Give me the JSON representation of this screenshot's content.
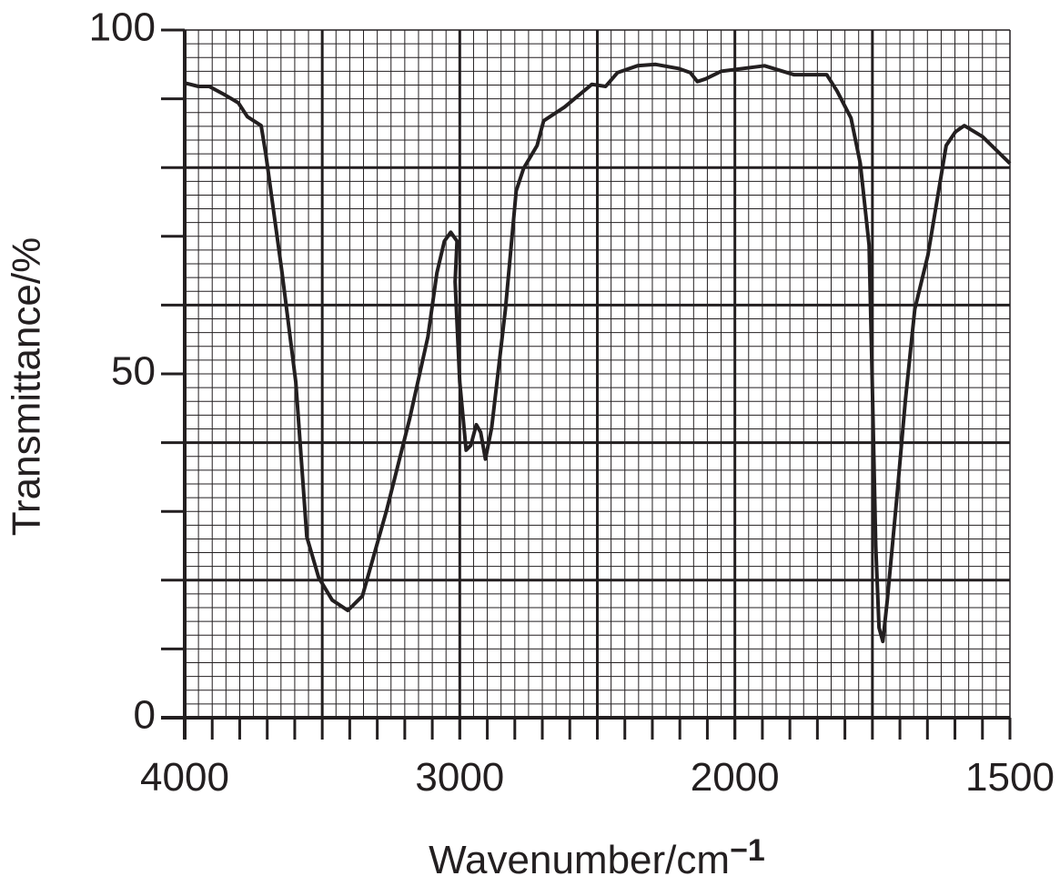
{
  "chart_data": {
    "type": "line",
    "y_label": "Transmittance/%",
    "x_label": "Wavenumber/cm",
    "x_label_sup": "−1",
    "xlim": [
      4000,
      1500
    ],
    "x_scale_change": 2000,
    "ylim": [
      0,
      100
    ],
    "xticks": [
      4000,
      3000,
      2000,
      1500
    ],
    "yticks": [
      0,
      50,
      100
    ],
    "grid": true,
    "color": "#231f20",
    "x": [
      4000,
      3950,
      3911,
      3851,
      3805,
      3772,
      3722,
      3705,
      3646,
      3596,
      3556,
      3513,
      3464,
      3407,
      3354,
      3265,
      3182,
      3116,
      3083,
      3056,
      3033,
      3010,
      3017,
      3000,
      2977,
      2960,
      2940,
      2924,
      2907,
      2884,
      2834,
      2795,
      2768,
      2719,
      2695,
      2619,
      2520,
      2470,
      2427,
      2354,
      2288,
      2205,
      2162,
      2136,
      2106,
      2050,
      1946,
      1893,
      1833,
      1814,
      1789,
      1772,
      1756,
      1751,
      1744,
      1738,
      1731,
      1723,
      1706,
      1690,
      1673,
      1649,
      1616,
      1599,
      1583,
      1550,
      1500
    ],
    "values": [
      92.3,
      91.8,
      91.8,
      90.5,
      89.4,
      87.4,
      86.1,
      81.9,
      64.7,
      48.8,
      26.3,
      20.4,
      17.1,
      15.6,
      17.7,
      30.3,
      43.5,
      55.4,
      64.7,
      69.3,
      70.6,
      69.3,
      63.4,
      48.8,
      38.9,
      39.6,
      42.6,
      41.5,
      37.6,
      42.2,
      59.4,
      76.6,
      79.9,
      83.2,
      86.8,
      88.8,
      92.1,
      91.8,
      93.8,
      94.8,
      95.0,
      94.4,
      93.8,
      92.5,
      92.9,
      94.0,
      94.8,
      93.5,
      93.5,
      91.1,
      87.2,
      80.6,
      68.7,
      51.5,
      25.0,
      13.1,
      11.1,
      17.1,
      31.6,
      46.2,
      59.4,
      67.3,
      83.2,
      85.2,
      86.1,
      84.5,
      80.6
    ]
  }
}
